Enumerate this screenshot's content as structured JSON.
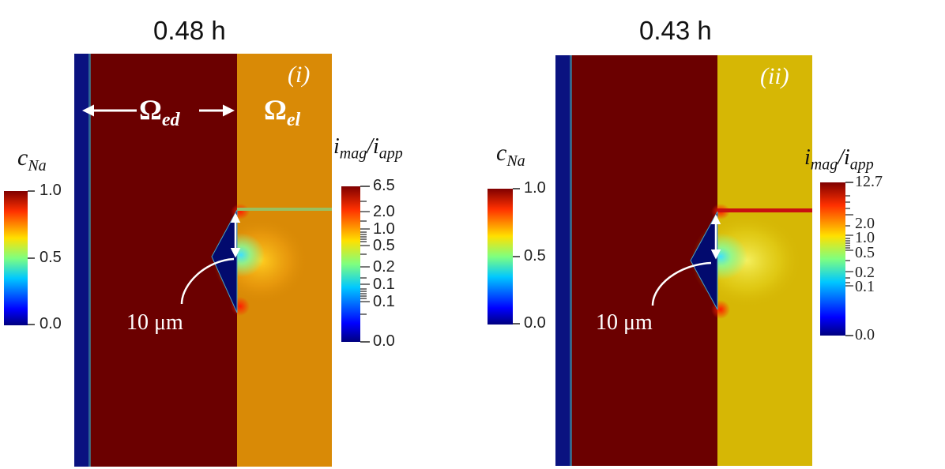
{
  "panel_i": {
    "time_label": "0.48 h",
    "tag": "(i)",
    "omega_ed": "Ω",
    "omega_ed_sub": "ed",
    "omega_el": "Ω",
    "omega_el_sub": "el",
    "scale_label": "10 μm",
    "cna_colorbar": {
      "label_main": "c",
      "label_sub": "Na",
      "ticks": [
        "1.0",
        "0.5",
        "0.0"
      ]
    },
    "imag_colorbar": {
      "label_num": "i",
      "label_num_sub": "mag",
      "label_den": "i",
      "label_den_sub": "app",
      "ticks": [
        "6.5",
        "2.0",
        "1.0",
        "0.5",
        "0.2",
        "0.1",
        "0.1",
        "0.0"
      ]
    }
  },
  "panel_ii": {
    "time_label": "0.43 h",
    "tag": "(ii)",
    "scale_label": "10 μm",
    "cna_colorbar": {
      "label_main": "c",
      "label_sub": "Na",
      "ticks": [
        "1.0",
        "0.5",
        "0.0"
      ]
    },
    "imag_colorbar": {
      "label_num": "i",
      "label_num_sub": "mag",
      "label_den": "i",
      "label_den_sub": "app",
      "ticks": [
        "12.7",
        "2.0",
        "1.0",
        "0.5",
        "0.2",
        "0.1",
        "0.0"
      ]
    }
  },
  "colors": {
    "electrode": "#6b0000",
    "electrolyte_i": "#d98a06",
    "electrolyte_ii": "#d6b705",
    "current_collector": "#0a1280",
    "void": "#020a6e"
  }
}
